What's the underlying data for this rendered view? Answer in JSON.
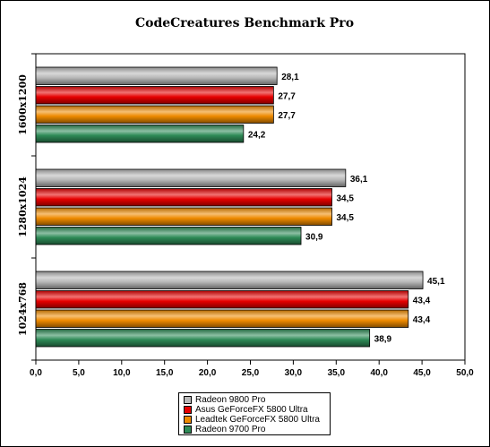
{
  "chart_data": {
    "type": "bar",
    "orientation": "horizontal",
    "title": "CodeCreatures Benchmark Pro",
    "categories": [
      "1600x1200",
      "1280x1024",
      "1024x768"
    ],
    "series": [
      {
        "name": "Radeon 9800 Pro",
        "color": "#b8b8b8",
        "values": [
          28.1,
          36.1,
          45.1
        ],
        "labels": [
          "28,1",
          "36,1",
          "45,1"
        ]
      },
      {
        "name": "Asus GeForceFX 5800 Ultra",
        "color": "#e60000",
        "values": [
          27.7,
          34.5,
          43.4
        ],
        "labels": [
          "27,7",
          "34,5",
          "43,4"
        ]
      },
      {
        "name": "Leadtek GeForceFX 5800 Ultra",
        "color": "#ee8a00",
        "values": [
          27.7,
          34.5,
          43.4
        ],
        "labels": [
          "27,7",
          "34,5",
          "43,4"
        ]
      },
      {
        "name": "Radeon 9700 Pro",
        "color": "#2e8b57",
        "values": [
          24.2,
          30.9,
          38.9
        ],
        "labels": [
          "24,2",
          "30,9",
          "38,9"
        ]
      }
    ],
    "xlim": [
      0,
      50
    ],
    "xticks": [
      0,
      5,
      10,
      15,
      20,
      25,
      30,
      35,
      40,
      45,
      50
    ],
    "xtick_labels": [
      "0,0",
      "5,0",
      "10,0",
      "15,0",
      "20,0",
      "25,0",
      "30,0",
      "35,0",
      "40,0",
      "45,0",
      "50,0"
    ],
    "grid": false,
    "legend_position": "bottom"
  }
}
